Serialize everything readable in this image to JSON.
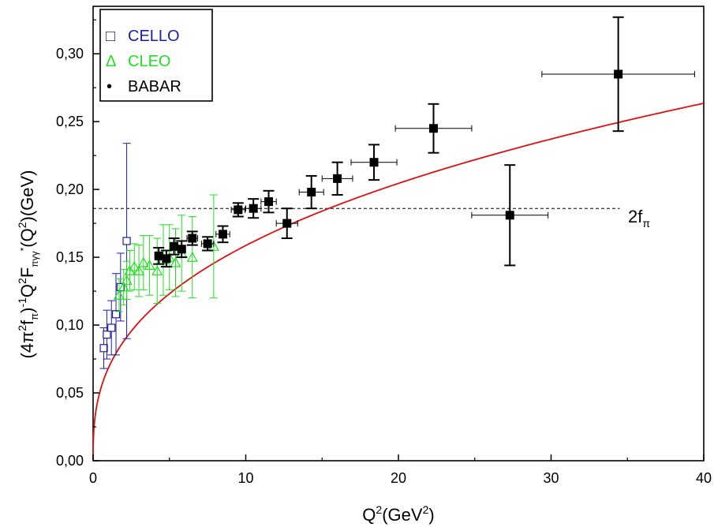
{
  "chart_data": {
    "type": "scatter",
    "title": "",
    "xlabel": "Q2(GeV2)",
    "xlabel_parts": {
      "base": "Q",
      "sup1": "2",
      "mid": "(GeV",
      "sup2": "2",
      "end": ")"
    },
    "ylabel": "(4π2fπ)-1Q2Fπγγ*(Q2)(GeV)",
    "xlim": [
      0,
      40
    ],
    "ylim": [
      0,
      0.335
    ],
    "x_ticks": [
      0,
      10,
      20,
      30,
      40
    ],
    "x_tick_labels": [
      "0",
      "10",
      "20",
      "30",
      "40"
    ],
    "y_ticks": [
      0.0,
      0.05,
      0.1,
      0.15,
      0.2,
      0.25,
      0.3
    ],
    "y_tick_labels": [
      "0,00",
      "0,05",
      "0,10",
      "0,15",
      "0,20",
      "0,25",
      "0,30"
    ],
    "grid": false,
    "legend": {
      "position": "top-left",
      "entries": [
        {
          "marker": "□",
          "label": "CELLO",
          "color": "#1f1fa0"
        },
        {
          "marker": "Δ",
          "label": "CLEO",
          "color": "#22e022"
        },
        {
          "marker": "•",
          "label": "BABAR",
          "color": "#000000"
        }
      ]
    },
    "reference_line": {
      "y": 0.186,
      "style": "dashed",
      "label": "2f",
      "label_sub": "π"
    },
    "curve": {
      "color": "#e01010",
      "description": "fit",
      "a": 0.0683,
      "p": 0.366
    },
    "series": [
      {
        "name": "CELLO",
        "marker": "open-square",
        "color": "#1f1fa0",
        "points": [
          {
            "x": 0.7,
            "y": 0.083,
            "yerr": 0.015
          },
          {
            "x": 0.9,
            "y": 0.093,
            "yerr": 0.018
          },
          {
            "x": 1.2,
            "y": 0.098,
            "yerr": 0.02
          },
          {
            "x": 1.5,
            "y": 0.108,
            "yerr": 0.03
          },
          {
            "x": 1.8,
            "y": 0.128,
            "yerr": 0.025
          },
          {
            "x": 2.2,
            "y": 0.162,
            "yerr": 0.072
          }
        ]
      },
      {
        "name": "CLEO",
        "marker": "open-triangle",
        "color": "#22e022",
        "points": [
          {
            "x": 1.7,
            "y": 0.122,
            "yerr": 0.012
          },
          {
            "x": 2.0,
            "y": 0.128,
            "yerr": 0.013
          },
          {
            "x": 2.2,
            "y": 0.133,
            "yerr": 0.014
          },
          {
            "x": 2.4,
            "y": 0.14,
            "yerr": 0.015
          },
          {
            "x": 2.7,
            "y": 0.143,
            "yerr": 0.017
          },
          {
            "x": 3.0,
            "y": 0.14,
            "yerr": 0.019
          },
          {
            "x": 3.3,
            "y": 0.146,
            "yerr": 0.02
          },
          {
            "x": 3.7,
            "y": 0.144,
            "yerr": 0.022
          },
          {
            "x": 4.2,
            "y": 0.14,
            "yerr": 0.024
          },
          {
            "x": 4.6,
            "y": 0.148,
            "yerr": 0.026
          },
          {
            "x": 5.0,
            "y": 0.15,
            "yerr": 0.024
          },
          {
            "x": 5.4,
            "y": 0.146,
            "yerr": 0.025
          },
          {
            "x": 5.8,
            "y": 0.153,
            "yerr": 0.028
          },
          {
            "x": 6.5,
            "y": 0.15,
            "yerr": 0.03
          },
          {
            "x": 7.9,
            "y": 0.158,
            "yerr": 0.038
          }
        ]
      },
      {
        "name": "BABAR",
        "marker": "filled-square",
        "color": "#000000",
        "points": [
          {
            "x": 4.3,
            "y": 0.151,
            "yerr": 0.006,
            "xerr": 0.25
          },
          {
            "x": 4.8,
            "y": 0.149,
            "yerr": 0.006,
            "xerr": 0.25
          },
          {
            "x": 5.3,
            "y": 0.158,
            "yerr": 0.006,
            "xerr": 0.25
          },
          {
            "x": 5.8,
            "y": 0.156,
            "yerr": 0.006,
            "xerr": 0.25
          },
          {
            "x": 6.5,
            "y": 0.164,
            "yerr": 0.005,
            "xerr": 0.35
          },
          {
            "x": 7.5,
            "y": 0.16,
            "yerr": 0.005,
            "xerr": 0.4
          },
          {
            "x": 8.5,
            "y": 0.167,
            "yerr": 0.006,
            "xerr": 0.45
          },
          {
            "x": 9.5,
            "y": 0.185,
            "yerr": 0.005,
            "xerr": 0.45
          },
          {
            "x": 10.5,
            "y": 0.186,
            "yerr": 0.007,
            "xerr": 0.5
          },
          {
            "x": 11.5,
            "y": 0.191,
            "yerr": 0.008,
            "xerr": 0.5
          },
          {
            "x": 12.7,
            "y": 0.175,
            "yerr": 0.011,
            "xerr": 0.7
          },
          {
            "x": 14.3,
            "y": 0.198,
            "yerr": 0.012,
            "xerr": 0.8
          },
          {
            "x": 16.0,
            "y": 0.208,
            "yerr": 0.012,
            "xerr": 1.0
          },
          {
            "x": 18.4,
            "y": 0.22,
            "yerr": 0.013,
            "xerr": 1.5
          },
          {
            "x": 22.3,
            "y": 0.245,
            "yerr": 0.018,
            "xerr": 2.5
          },
          {
            "x": 27.3,
            "y": 0.181,
            "yerr": 0.037,
            "xerr": 2.5
          },
          {
            "x": 34.4,
            "y": 0.285,
            "yerr": 0.042,
            "xerr": 5.0
          }
        ]
      }
    ]
  }
}
